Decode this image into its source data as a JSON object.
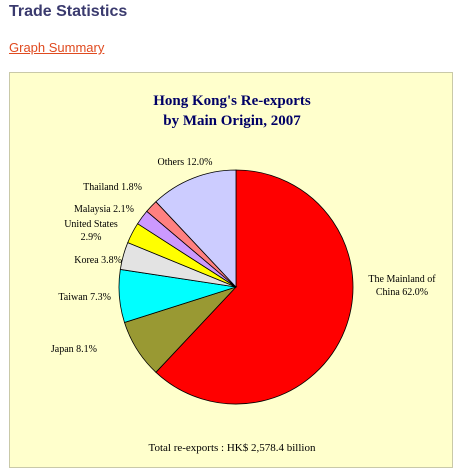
{
  "header": {
    "title": "Trade Statistics"
  },
  "link": {
    "label": "Graph Summary"
  },
  "chart_data": {
    "type": "pie",
    "title_lines": [
      "Hong Kong's Re-exports",
      "by Main Origin, 2007"
    ],
    "unit": "%",
    "slices": [
      {
        "label_lines": [
          "The Mainland of",
          "China  62.0%"
        ],
        "name": "The Mainland of China",
        "value": 62.0,
        "color": "#ff0000"
      },
      {
        "label_lines": [
          "Japan  8.1%"
        ],
        "name": "Japan",
        "value": 8.1,
        "color": "#999933"
      },
      {
        "label_lines": [
          "Taiwan  7.3%"
        ],
        "name": "Taiwan",
        "value": 7.3,
        "color": "#00ffff"
      },
      {
        "label_lines": [
          "Korea  3.8%"
        ],
        "name": "Korea",
        "value": 3.8,
        "color": "#e3e3e3"
      },
      {
        "label_lines": [
          "United States",
          "2.9%"
        ],
        "name": "United States",
        "value": 2.9,
        "color": "#ffff00"
      },
      {
        "label_lines": [
          "Malaysia  2.1%"
        ],
        "name": "Malaysia",
        "value": 2.1,
        "color": "#cc99ff"
      },
      {
        "label_lines": [
          "Thailand  1.8%"
        ],
        "name": "Thailand",
        "value": 1.8,
        "color": "#ff8080"
      },
      {
        "label_lines": [
          "Others  12.0%"
        ],
        "name": "Others",
        "value": 12.0,
        "color": "#ccccff"
      }
    ],
    "footnote": "Total re-exports : HK$ 2,578.4 billion"
  }
}
